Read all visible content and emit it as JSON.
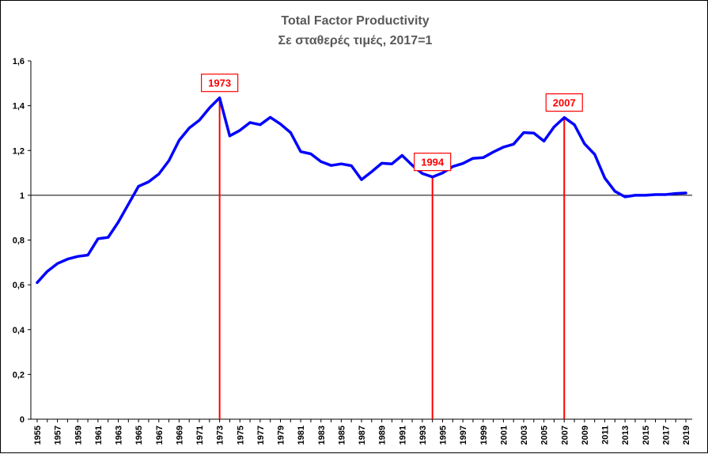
{
  "chart_data": {
    "type": "line",
    "title": "Total Factor Productivity",
    "subtitle": "Σε σταθερές τιμές, 2017=1",
    "xlabel": "",
    "ylabel": "",
    "ylim": [
      0,
      1.6
    ],
    "yticks": [
      "0",
      "0,2",
      "0,4",
      "0,6",
      "0,8",
      "1",
      "1,2",
      "1,4",
      "1,6"
    ],
    "ytick_values": [
      0,
      0.2,
      0.4,
      0.6,
      0.8,
      1.0,
      1.2,
      1.4,
      1.6
    ],
    "xticks": [
      "1955",
      "1957",
      "1959",
      "1961",
      "1963",
      "1965",
      "1967",
      "1969",
      "1971",
      "1973",
      "1975",
      "1977",
      "1979",
      "1981",
      "1983",
      "1985",
      "1987",
      "1989",
      "1991",
      "1993",
      "1995",
      "1997",
      "1999",
      "2001",
      "2003",
      "2005",
      "2007",
      "2009",
      "2011",
      "2013",
      "2015",
      "2017",
      "2019"
    ],
    "reference_line": 1.0,
    "grid": false,
    "series": [
      {
        "name": "Total Factor Productivity",
        "color": "#0000ff",
        "x": [
          1955,
          1956,
          1957,
          1958,
          1959,
          1960,
          1961,
          1962,
          1963,
          1964,
          1965,
          1966,
          1967,
          1968,
          1969,
          1970,
          1971,
          1972,
          1973,
          1974,
          1975,
          1976,
          1977,
          1978,
          1979,
          1980,
          1981,
          1982,
          1983,
          1984,
          1985,
          1986,
          1987,
          1988,
          1989,
          1990,
          1991,
          1992,
          1993,
          1994,
          1995,
          1996,
          1997,
          1998,
          1999,
          2000,
          2001,
          2002,
          2003,
          2004,
          2005,
          2006,
          2007,
          2008,
          2009,
          2010,
          2011,
          2012,
          2013,
          2014,
          2015,
          2016,
          2017,
          2018,
          2019
        ],
        "values": [
          0.61,
          0.66,
          0.695,
          0.715,
          0.727,
          0.733,
          0.806,
          0.812,
          0.88,
          0.96,
          1.04,
          1.06,
          1.095,
          1.155,
          1.245,
          1.3,
          1.335,
          1.39,
          1.435,
          1.265,
          1.29,
          1.325,
          1.315,
          1.348,
          1.318,
          1.28,
          1.195,
          1.185,
          1.15,
          1.133,
          1.14,
          1.132,
          1.07,
          1.105,
          1.143,
          1.14,
          1.178,
          1.134,
          1.097,
          1.082,
          1.1,
          1.128,
          1.142,
          1.165,
          1.168,
          1.193,
          1.215,
          1.228,
          1.28,
          1.278,
          1.242,
          1.305,
          1.347,
          1.315,
          1.23,
          1.183,
          1.077,
          1.018,
          0.993,
          1.0,
          1.0,
          1.003,
          1.003,
          1.008,
          1.01
        ]
      }
    ],
    "annotations": [
      {
        "label": "1973",
        "x": 1973,
        "color": "#ff0000"
      },
      {
        "label": "1994",
        "x": 1994,
        "color": "#ff0000"
      },
      {
        "label": "2007",
        "x": 2007,
        "color": "#ff0000"
      }
    ]
  }
}
